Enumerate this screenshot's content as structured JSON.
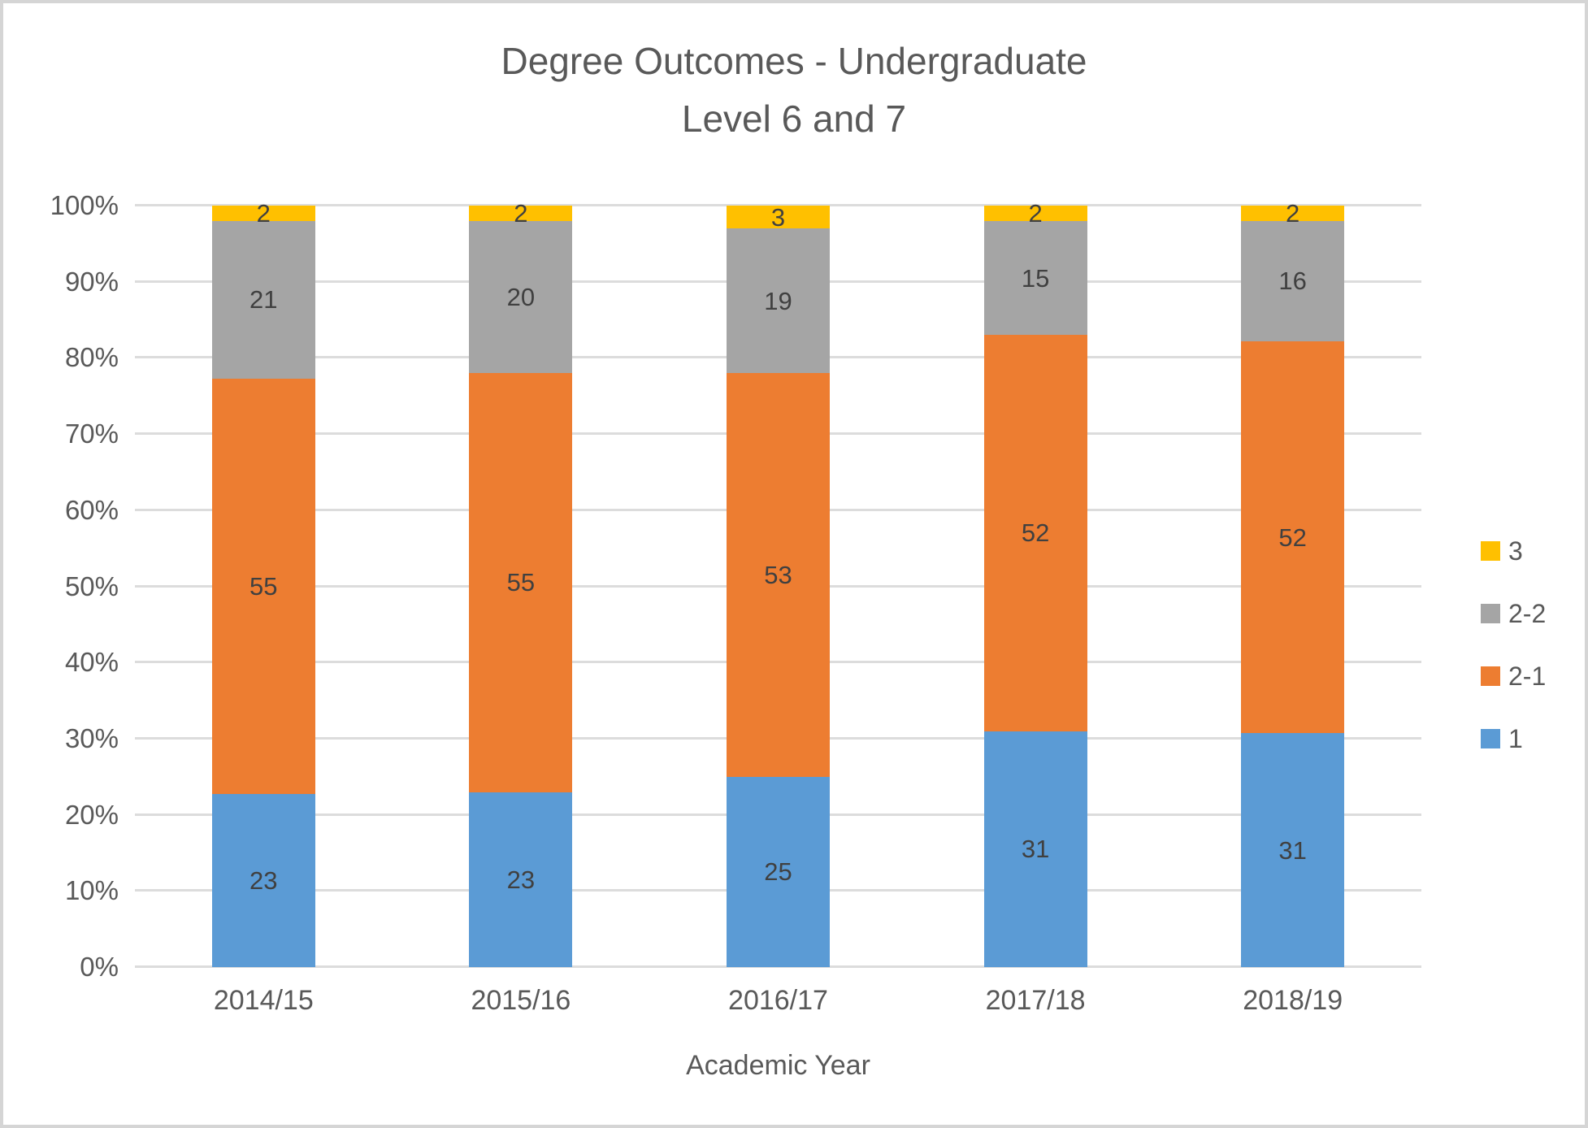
{
  "title": {
    "line1": "Degree Outcomes - Undergraduate",
    "line2": "Level 6 and 7"
  },
  "colors": {
    "first": "#5B9BD5",
    "upper_second": "#ED7D31",
    "lower_second": "#A5A5A5",
    "third": "#FFC000",
    "gridline": "#DCDCDC",
    "text": "#595959",
    "data_label": "#404040"
  },
  "chart_data": {
    "type": "bar",
    "stacked": true,
    "percent_stacked": true,
    "title": "Degree Outcomes - Undergraduate Level 6 and 7",
    "categories": [
      "2014/15",
      "2015/16",
      "2016/17",
      "2017/18",
      "2018/19"
    ],
    "series": [
      {
        "name": "1",
        "color": "#5B9BD5",
        "values": [
          23,
          23,
          25,
          31,
          31
        ]
      },
      {
        "name": "2-1",
        "color": "#ED7D31",
        "values": [
          55,
          55,
          53,
          52,
          52
        ]
      },
      {
        "name": "2-2",
        "color": "#A5A5A5",
        "values": [
          21,
          20,
          19,
          15,
          16
        ]
      },
      {
        "name": "3",
        "color": "#FFC000",
        "values": [
          2,
          2,
          3,
          2,
          2
        ]
      }
    ],
    "xlabel": "Academic Year",
    "ylabel": "",
    "ylim": [
      0,
      100
    ],
    "y_ticks": [
      "0%",
      "10%",
      "20%",
      "30%",
      "40%",
      "50%",
      "60%",
      "70%",
      "80%",
      "90%",
      "100%"
    ],
    "grid": true,
    "legend_position": "right",
    "legend_order_top_to_bottom": [
      "3",
      "2-2",
      "2-1",
      "1"
    ]
  }
}
